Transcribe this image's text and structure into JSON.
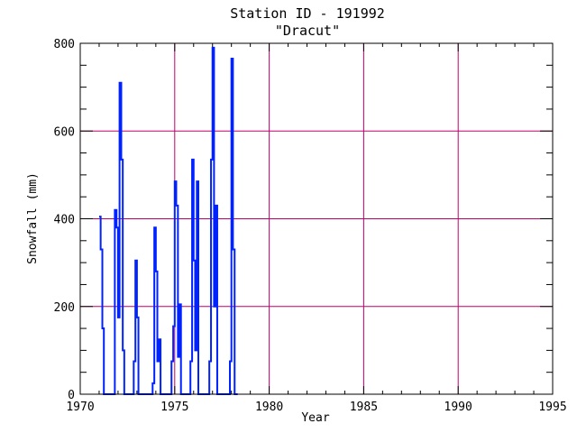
{
  "colors": {
    "grid": "#c0006a",
    "series": "#0022ff",
    "axis": "#000000"
  },
  "chart_data": {
    "type": "line",
    "title": "Station ID - 191992",
    "subtitle": "\"Dracut\"",
    "xlabel": "Year",
    "ylabel": "Snowfall (mm)",
    "xlim": [
      1970,
      1995
    ],
    "ylim": [
      0,
      800
    ],
    "xticks": [
      1970,
      1975,
      1980,
      1985,
      1990,
      1995
    ],
    "yticks": [
      0,
      200,
      400,
      600,
      800
    ],
    "grid": true,
    "series": [
      {
        "step": "post",
        "x": [
          1971.0,
          1971.08,
          1971.17,
          1971.25,
          1971.33,
          1971.42,
          1971.5,
          1971.75,
          1971.83,
          1971.92,
          1972.0,
          1972.08,
          1972.17,
          1972.25,
          1972.33,
          1972.75,
          1972.83,
          1972.92,
          1973.0,
          1973.08,
          1973.17,
          1973.25,
          1973.75,
          1973.83,
          1973.92,
          1974.0,
          1974.08,
          1974.17,
          1974.25,
          1974.33,
          1974.75,
          1974.83,
          1974.92,
          1975.0,
          1975.08,
          1975.17,
          1975.25,
          1975.33,
          1975.75,
          1975.83,
          1975.92,
          1976.0,
          1976.08,
          1976.17,
          1976.25,
          1976.33,
          1976.75,
          1976.83,
          1976.92,
          1977.0,
          1977.08,
          1977.17,
          1977.25,
          1977.75,
          1977.83,
          1977.92,
          1978.0,
          1978.08,
          1978.17,
          1978.25
        ],
        "y": [
          405,
          330,
          150,
          0,
          0,
          0,
          0,
          0,
          420,
          380,
          175,
          710,
          535,
          100,
          0,
          0,
          75,
          305,
          175,
          0,
          0,
          0,
          0,
          25,
          380,
          280,
          75,
          125,
          0,
          0,
          0,
          75,
          155,
          485,
          430,
          85,
          205,
          0,
          0,
          75,
          535,
          305,
          100,
          485,
          0,
          0,
          0,
          75,
          535,
          790,
          200,
          430,
          0,
          0,
          0,
          75,
          765,
          330,
          0,
          0
        ]
      }
    ]
  }
}
